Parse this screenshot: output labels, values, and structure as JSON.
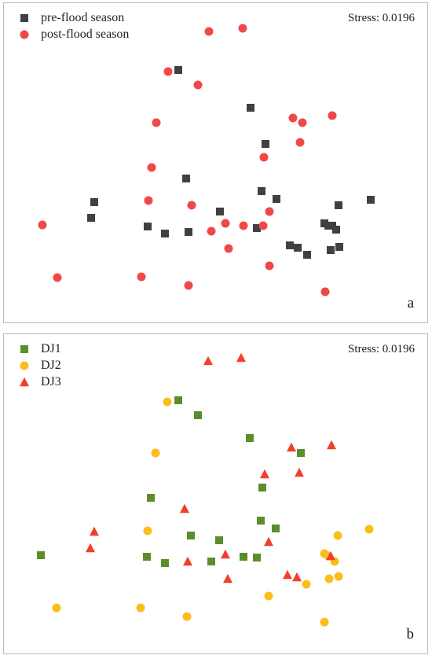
{
  "colors": {
    "pre_flood": "#404040",
    "post_flood": "#f04848",
    "DJ1": "#5b8d2a",
    "DJ2": "#fbbd1a",
    "DJ3": "#f0402a"
  },
  "chart_data": [
    {
      "type": "scatter",
      "panel_label": "a",
      "annotation": "Stress: 0.0196",
      "xlabel": "",
      "ylabel": "",
      "xlim": [
        0,
        541
      ],
      "ylim": [
        0,
        408
      ],
      "grid": false,
      "legend_position": "top-left",
      "series": [
        {
          "name": "pre-flood season",
          "marker": "square",
          "color": "#404040",
          "points": [
            [
              222,
              85
            ],
            [
              314,
              133
            ],
            [
              333,
              179
            ],
            [
              232,
              223
            ],
            [
              328,
              239
            ],
            [
              347,
              249
            ],
            [
              467,
              250
            ],
            [
              115,
              253
            ],
            [
              426,
              257
            ],
            [
              275,
              265
            ],
            [
              111,
              273
            ],
            [
              408,
              280
            ],
            [
              413,
              283
            ],
            [
              418,
              283
            ],
            [
              423,
              288
            ],
            [
              183,
              284
            ],
            [
              205,
              293
            ],
            [
              235,
              291
            ],
            [
              322,
              286
            ],
            [
              364,
              308
            ],
            [
              374,
              311
            ],
            [
              386,
              320
            ],
            [
              416,
              314
            ],
            [
              427,
              310
            ]
          ]
        },
        {
          "name": "post-flood season",
          "marker": "circle",
          "color": "#f04848",
          "points": [
            [
              261,
              36
            ],
            [
              304,
              32
            ],
            [
              209,
              87
            ],
            [
              247,
              104
            ],
            [
              194,
              152
            ],
            [
              368,
              146
            ],
            [
              380,
              152
            ],
            [
              418,
              143
            ],
            [
              377,
              177
            ],
            [
              331,
              196
            ],
            [
              188,
              209
            ],
            [
              184,
              251
            ],
            [
              239,
              257
            ],
            [
              338,
              265
            ],
            [
              282,
              280
            ],
            [
              305,
              283
            ],
            [
              330,
              283
            ],
            [
              264,
              290
            ],
            [
              49,
              282
            ],
            [
              286,
              312
            ],
            [
              338,
              334
            ],
            [
              68,
              349
            ],
            [
              175,
              348
            ],
            [
              235,
              359
            ],
            [
              409,
              367
            ]
          ]
        }
      ]
    },
    {
      "type": "scatter",
      "panel_label": "b",
      "annotation": "Stress: 0.0196",
      "xlabel": "",
      "ylabel": "",
      "xlim": [
        0,
        541
      ],
      "ylim": [
        0,
        408
      ],
      "grid": false,
      "legend_position": "top-left",
      "series": [
        {
          "name": "DJ1",
          "marker": "square",
          "color": "#5b8d2a",
          "points": [
            [
              222,
              84
            ],
            [
              247,
              103
            ],
            [
              313,
              132
            ],
            [
              378,
              151
            ],
            [
              329,
              195
            ],
            [
              187,
              208
            ],
            [
              327,
              237
            ],
            [
              346,
              247
            ],
            [
              238,
              256
            ],
            [
              274,
              262
            ],
            [
              47,
              281
            ],
            [
              182,
              283
            ],
            [
              205,
              291
            ],
            [
              264,
              289
            ],
            [
              305,
              283
            ],
            [
              322,
              284
            ]
          ]
        },
        {
          "name": "DJ2",
          "marker": "circle",
          "color": "#fbbd1a",
          "points": [
            [
              208,
              86
            ],
            [
              193,
              151
            ],
            [
              183,
              250
            ],
            [
              465,
              248
            ],
            [
              425,
              256
            ],
            [
              408,
              279
            ],
            [
              413,
              282
            ],
            [
              421,
              289
            ],
            [
              414,
              311
            ],
            [
              426,
              308
            ],
            [
              385,
              318
            ],
            [
              337,
              333
            ],
            [
              67,
              348
            ],
            [
              174,
              348
            ],
            [
              233,
              359
            ],
            [
              408,
              366
            ]
          ]
        },
        {
          "name": "DJ3",
          "marker": "triangle",
          "color": "#f0402a",
          "points": [
            [
              260,
              34
            ],
            [
              302,
              30
            ],
            [
              366,
              144
            ],
            [
              417,
              141
            ],
            [
              332,
              178
            ],
            [
              376,
              176
            ],
            [
              230,
              222
            ],
            [
              115,
              251
            ],
            [
              337,
              264
            ],
            [
              110,
              272
            ],
            [
              234,
              289
            ],
            [
              282,
              280
            ],
            [
              416,
              282
            ],
            [
              285,
              311
            ],
            [
              361,
              306
            ],
            [
              373,
              309
            ]
          ]
        }
      ]
    }
  ]
}
